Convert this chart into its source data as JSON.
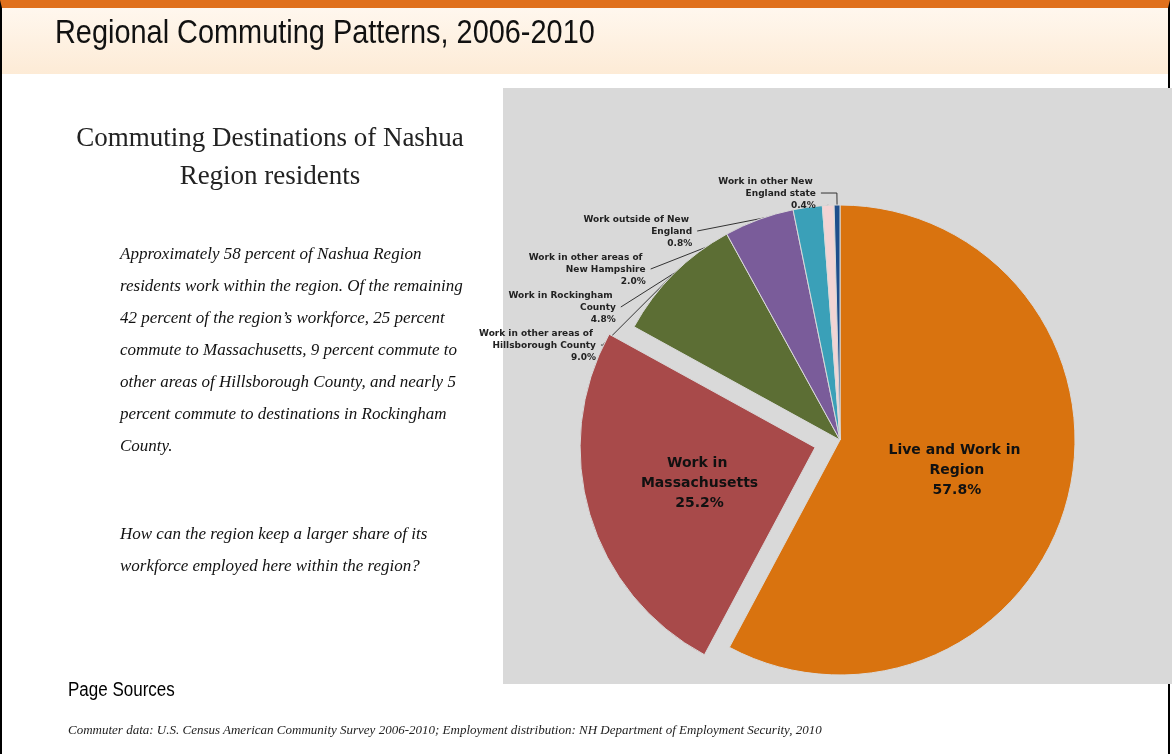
{
  "chart_data": {
    "type": "pie",
    "title": "Regional Commuting Patterns, 2006-2010",
    "subtitle": "Commuting Destinations of Nashua Region residents",
    "categories": [
      "Live and Work in Region",
      "Work in Massachusetts",
      "Work in other areas of Hillsborough County",
      "Work in Rockingham County",
      "Work in other areas of New Hampshire",
      "Work outside of New England",
      "Work in other New England state"
    ],
    "values": [
      57.8,
      25.2,
      9.0,
      4.8,
      2.0,
      0.8,
      0.4
    ],
    "colors": [
      "#d9730f",
      "#a84a4a",
      "#5c6e34",
      "#7a5c9a",
      "#3aa0b8",
      "#f2d4d4",
      "#1f4e8c"
    ],
    "value_labels": [
      "57.8%",
      "25.2%",
      "9.0%",
      "4.8%",
      "2.0%",
      "0.8%",
      "0.4%"
    ],
    "annotations": [
      "Approximately 58 percent of Nashua Region residents work within the region. Of the  remaining 42 percent of the region’s workforce, 25 percent commute to Massachusetts, 9 percent commute to other areas of Hillsborough County, and nearly 5 percent commute to destinations in Rockingham County.",
      "How can the region  keep a larger share of its workforce employed here within the region?",
      "Page Sources",
      "Commuter data: U.S. Census American Community Survey 2006-2010; Employment distribution: NH Department of Employment Security, 2010"
    ]
  }
}
